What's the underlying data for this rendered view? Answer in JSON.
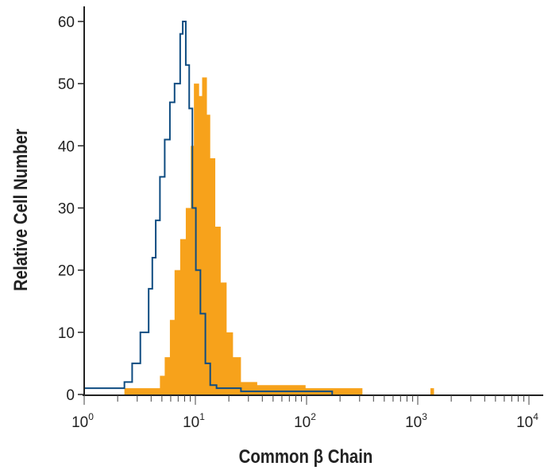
{
  "chart_data": {
    "type": "area",
    "title": "",
    "xlabel": "Common β Chain",
    "ylabel": "Relative Cell Number",
    "xscale": "log",
    "xlim": [
      1,
      10000
    ],
    "ylim": [
      0,
      60
    ],
    "grid": false,
    "x_tick_labels": [
      {
        "base": "10",
        "exp": "0"
      },
      {
        "base": "10",
        "exp": "1"
      },
      {
        "base": "10",
        "exp": "2"
      },
      {
        "base": "10",
        "exp": "3"
      },
      {
        "base": "10",
        "exp": "4"
      }
    ],
    "y_tick_labels": [
      "0",
      "10",
      "20",
      "30",
      "40",
      "50",
      "60"
    ],
    "series": [
      {
        "style": "filled",
        "color": "#f7a21b",
        "x": [
          1,
          2.3,
          4.8,
          5.3,
          5.9,
          6.5,
          7.3,
          8.2,
          9.1,
          9.7,
          10.8,
          11.5,
          12.7,
          13.6,
          15.1,
          16.9,
          19.1,
          21.8,
          25.7,
          36,
          98,
          269,
          318,
          1300,
          1400
        ],
        "y": [
          0,
          1,
          3,
          6,
          12,
          20,
          25,
          30,
          40,
          50,
          48,
          51,
          45,
          38,
          27,
          18,
          10,
          6,
          2,
          1.5,
          1,
          1,
          0,
          1,
          0
        ]
      },
      {
        "style": "outline",
        "color": "#0f4c81",
        "x": [
          1,
          2.1,
          2.3,
          2.7,
          3.2,
          3.8,
          4.1,
          4.4,
          4.8,
          5.3,
          5.9,
          6.5,
          7.3,
          7.7,
          8.2,
          8.8,
          9.4,
          10.1,
          11.1,
          12.3,
          13.6,
          15.5,
          25.7,
          138,
          170
        ],
        "y": [
          1,
          1,
          2,
          5,
          10,
          17,
          22,
          28,
          35,
          41,
          47,
          50,
          58,
          60,
          53,
          46,
          30,
          20,
          13,
          5,
          1.5,
          1,
          0.5,
          0.5,
          0
        ]
      }
    ]
  }
}
